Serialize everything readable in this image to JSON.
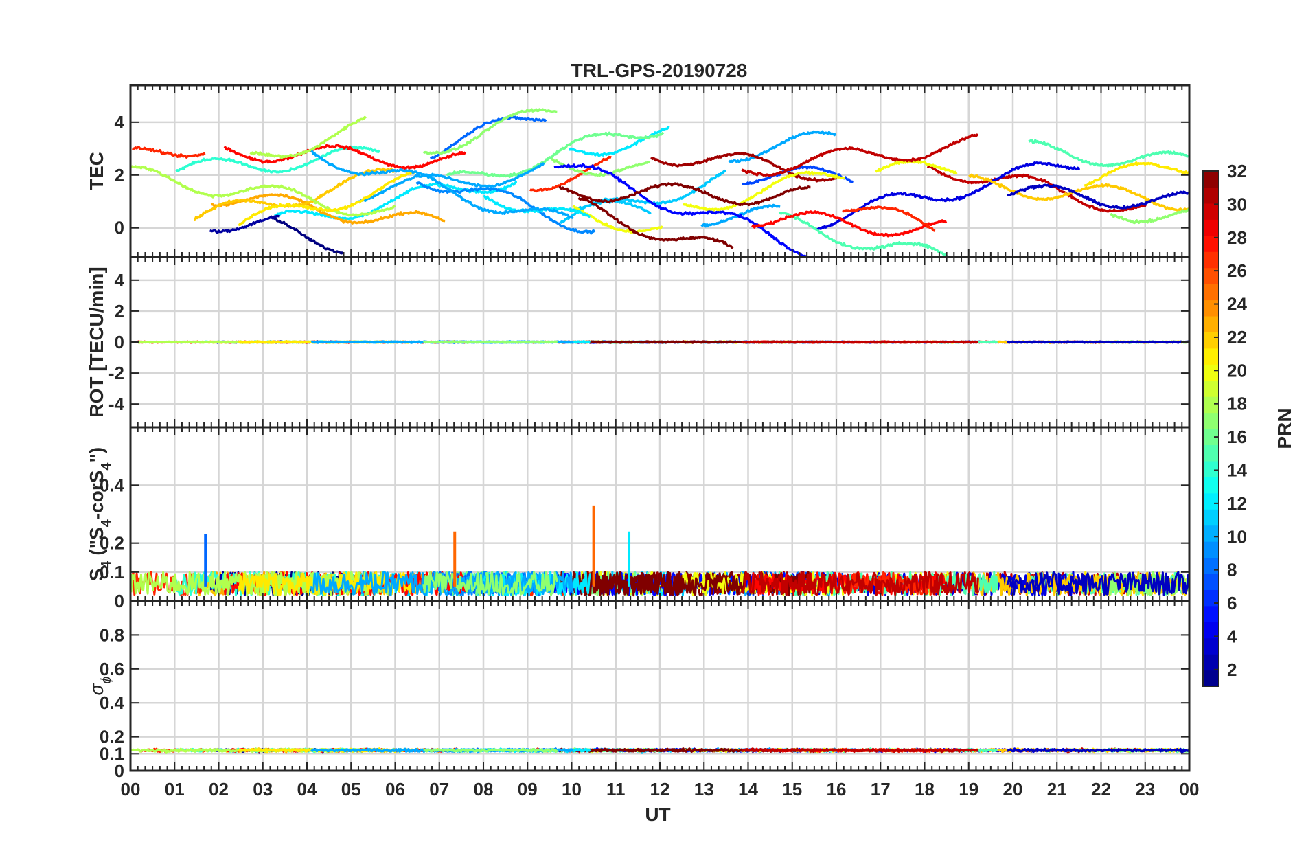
{
  "chart_data": [
    {
      "type": "line",
      "title": "TRL-GPS-20190728",
      "ylabel": "TEC",
      "ylim": [
        -1.1,
        5.4
      ],
      "yticks": [
        "0",
        "2",
        "4"
      ],
      "ytick_values": [
        0,
        2,
        4
      ],
      "grid": true,
      "series_by_prn": true
    },
    {
      "type": "line",
      "ylabel": "ROT [TECU/min]",
      "ylim": [
        -5.5,
        5.5
      ],
      "yticks": [
        "-4",
        "-2",
        "0",
        "2",
        "4"
      ],
      "ytick_values": [
        -4,
        -2,
        0,
        2,
        4
      ],
      "grid": true,
      "level": 0
    },
    {
      "type": "line",
      "ylabel_parts": [
        "S",
        "4",
        " (\"S",
        "4",
        "-corS",
        "4",
        "\")"
      ],
      "ylim": [
        0,
        0.6
      ],
      "yticks": [
        "0",
        "0.1",
        "0.2",
        "0.4"
      ],
      "ytick_values": [
        0,
        0.1,
        0.2,
        0.4
      ],
      "grid": true,
      "typical_range": [
        0.02,
        0.1
      ],
      "spikes": [
        {
          "x": 1.7,
          "y": 0.23,
          "prn": 8
        },
        {
          "x": 7.35,
          "y": 0.24,
          "prn": 25
        },
        {
          "x": 10.5,
          "y": 0.33,
          "prn": 25
        },
        {
          "x": 11.3,
          "y": 0.24,
          "prn": 12
        }
      ]
    },
    {
      "type": "line",
      "ylabel_parts": [
        "σ",
        "ϕ"
      ],
      "ylim": [
        0,
        1
      ],
      "yticks": [
        "0",
        "0.1",
        "0.2",
        "0.4",
        "0.6",
        "0.8"
      ],
      "ytick_values": [
        0,
        0.1,
        0.2,
        0.4,
        0.6,
        0.8
      ],
      "grid": true,
      "typical_level": 0.12
    }
  ],
  "x_axis": {
    "label": "UT",
    "range": [
      0,
      24
    ],
    "ticks": [
      "00",
      "01",
      "02",
      "03",
      "04",
      "05",
      "06",
      "07",
      "08",
      "09",
      "10",
      "11",
      "12",
      "13",
      "14",
      "15",
      "16",
      "17",
      "18",
      "19",
      "20",
      "21",
      "22",
      "23",
      "00"
    ]
  },
  "colorbar": {
    "label": "PRN",
    "range": [
      1,
      32
    ],
    "ticks": [
      "2",
      "4",
      "6",
      "8",
      "10",
      "12",
      "14",
      "16",
      "18",
      "20",
      "22",
      "24",
      "26",
      "28",
      "30",
      "32"
    ],
    "tick_values": [
      2,
      4,
      6,
      8,
      10,
      12,
      14,
      16,
      18,
      20,
      22,
      24,
      26,
      28,
      30,
      32
    ],
    "colormap": "jet"
  }
}
